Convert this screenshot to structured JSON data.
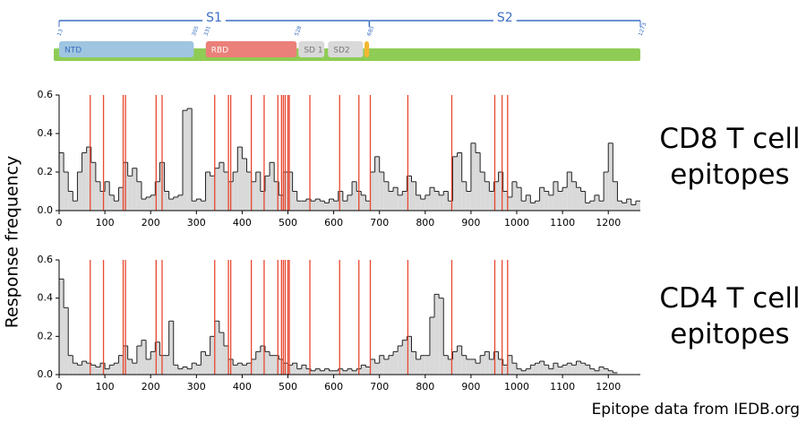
{
  "ylabel": "Response frequency",
  "source": "Epitope data from IEDB.org",
  "domain_map": {
    "regions": [
      {
        "label": "S1",
        "start": 13,
        "end": 685
      },
      {
        "label": "S2",
        "start": 686,
        "end": 1273
      }
    ],
    "domains": [
      {
        "label": "NTD",
        "start": 13,
        "end": 305,
        "color": "#9fc5e0"
      },
      {
        "label": "RBD",
        "start": 331,
        "end": 528,
        "color": "#ea8079"
      },
      {
        "label": "SD 1",
        "start": 532,
        "end": 588,
        "color": "#d9d9d9"
      },
      {
        "label": "SD2",
        "start": 596,
        "end": 672,
        "color": "#d9d9d9"
      },
      {
        "start": 675,
        "end": 685,
        "color": "#f5b731"
      }
    ],
    "boundaries": [
      13,
      305,
      331,
      528,
      685,
      1273
    ],
    "bar_color": "#8fcc55",
    "xlim": [
      13,
      1273
    ]
  },
  "chart_data": [
    {
      "type": "step-area",
      "title": "CD8 T cell epitopes",
      "color": "#d9d9d9",
      "line_color": "#222",
      "marker_color": "#e8472f",
      "xlim": [
        0,
        1270
      ],
      "ylim": [
        0,
        0.6
      ],
      "xticks": [
        0,
        100,
        200,
        300,
        400,
        500,
        600,
        700,
        800,
        900,
        1000,
        1100,
        1200
      ],
      "yticks": [
        {
          "value": 0,
          "label": "0.0"
        },
        0.2,
        0.4,
        0.6
      ],
      "epitope_x": [
        68,
        97,
        140,
        145,
        212,
        225,
        340,
        370,
        375,
        420,
        448,
        478,
        486,
        490,
        494,
        500,
        503,
        548,
        613,
        655,
        680,
        762,
        858,
        952,
        968,
        980
      ],
      "x": [
        0,
        10,
        20,
        30,
        40,
        50,
        60,
        70,
        80,
        90,
        100,
        110,
        120,
        130,
        140,
        150,
        160,
        170,
        180,
        190,
        200,
        210,
        220,
        230,
        240,
        250,
        260,
        270,
        280,
        290,
        300,
        310,
        320,
        330,
        340,
        350,
        360,
        370,
        380,
        390,
        400,
        410,
        420,
        430,
        440,
        450,
        460,
        470,
        480,
        490,
        500,
        510,
        520,
        530,
        540,
        550,
        560,
        570,
        580,
        590,
        600,
        610,
        620,
        630,
        640,
        650,
        660,
        670,
        680,
        690,
        700,
        710,
        720,
        730,
        740,
        750,
        760,
        770,
        780,
        790,
        800,
        810,
        820,
        830,
        840,
        850,
        860,
        870,
        880,
        890,
        900,
        910,
        920,
        930,
        940,
        950,
        960,
        970,
        980,
        990,
        1000,
        1010,
        1020,
        1030,
        1040,
        1050,
        1060,
        1070,
        1080,
        1090,
        1100,
        1110,
        1120,
        1130,
        1140,
        1150,
        1160,
        1170,
        1180,
        1190,
        1200,
        1210,
        1220,
        1230,
        1240,
        1250,
        1260
      ],
      "values": [
        0.3,
        0.2,
        0.1,
        0.05,
        0.2,
        0.3,
        0.33,
        0.25,
        0.15,
        0.1,
        0.15,
        0.08,
        0.05,
        0.12,
        0.25,
        0.18,
        0.22,
        0.15,
        0.06,
        0.07,
        0.08,
        0.15,
        0.25,
        0.1,
        0.06,
        0.07,
        0.08,
        0.52,
        0.53,
        0.05,
        0.06,
        0.05,
        0.2,
        0.18,
        0.22,
        0.25,
        0.2,
        0.15,
        0.2,
        0.33,
        0.27,
        0.2,
        0.15,
        0.2,
        0.1,
        0.18,
        0.25,
        0.15,
        0.08,
        0.2,
        0.2,
        0.1,
        0.05,
        0.05,
        0.06,
        0.05,
        0.06,
        0.05,
        0.04,
        0.06,
        0.05,
        0.1,
        0.05,
        0.08,
        0.15,
        0.1,
        0.08,
        0.05,
        0.2,
        0.28,
        0.2,
        0.15,
        0.1,
        0.12,
        0.08,
        0.1,
        0.18,
        0.15,
        0.08,
        0.06,
        0.08,
        0.12,
        0.1,
        0.08,
        0.1,
        0.05,
        0.28,
        0.3,
        0.15,
        0.1,
        0.35,
        0.3,
        0.2,
        0.15,
        0.1,
        0.15,
        0.2,
        0.1,
        0.07,
        0.15,
        0.12,
        0.05,
        0.08,
        0.04,
        0.05,
        0.12,
        0.1,
        0.08,
        0.15,
        0.1,
        0.12,
        0.2,
        0.15,
        0.12,
        0.1,
        0.04,
        0.05,
        0.08,
        0.05,
        0.2,
        0.35,
        0.15,
        0.05,
        0.04,
        0.06,
        0.03,
        0.05
      ]
    },
    {
      "type": "step-area",
      "title": "CD4 T cell epitopes",
      "color": "#d9d9d9",
      "line_color": "#222",
      "marker_color": "#e8472f",
      "xlim": [
        0,
        1270
      ],
      "ylim": [
        0,
        0.6
      ],
      "xticks": [
        0,
        100,
        200,
        300,
        400,
        500,
        600,
        700,
        800,
        900,
        1000,
        1100,
        1200
      ],
      "yticks": [
        {
          "value": 0,
          "label": "0.0"
        },
        0.2,
        0.4,
        0.6
      ],
      "epitope_x": [
        68,
        97,
        140,
        145,
        212,
        225,
        340,
        370,
        375,
        420,
        448,
        478,
        486,
        490,
        494,
        500,
        503,
        548,
        613,
        655,
        680,
        762,
        858,
        952,
        968,
        980
      ],
      "x": [
        0,
        10,
        20,
        30,
        40,
        50,
        60,
        70,
        80,
        90,
        100,
        110,
        120,
        130,
        140,
        150,
        160,
        170,
        180,
        190,
        200,
        210,
        220,
        230,
        240,
        250,
        260,
        270,
        280,
        290,
        300,
        310,
        320,
        330,
        340,
        350,
        360,
        370,
        380,
        390,
        400,
        410,
        420,
        430,
        440,
        450,
        460,
        470,
        480,
        490,
        500,
        510,
        520,
        530,
        540,
        550,
        560,
        570,
        580,
        590,
        600,
        610,
        620,
        630,
        640,
        650,
        660,
        670,
        680,
        690,
        700,
        710,
        720,
        730,
        740,
        750,
        760,
        770,
        780,
        790,
        800,
        810,
        820,
        830,
        840,
        850,
        860,
        870,
        880,
        890,
        900,
        910,
        920,
        930,
        940,
        950,
        960,
        970,
        980,
        990,
        1000,
        1010,
        1020,
        1030,
        1040,
        1050,
        1060,
        1070,
        1080,
        1090,
        1100,
        1110,
        1120,
        1130,
        1140,
        1150,
        1160,
        1170,
        1180,
        1190,
        1200,
        1210
      ],
      "values": [
        0.5,
        0.35,
        0.1,
        0.06,
        0.05,
        0.07,
        0.06,
        0.05,
        0.04,
        0.06,
        0.03,
        0.05,
        0.06,
        0.1,
        0.15,
        0.08,
        0.06,
        0.15,
        0.18,
        0.08,
        0.12,
        0.17,
        0.1,
        0.1,
        0.28,
        0.05,
        0.03,
        0.04,
        0.03,
        0.06,
        0.05,
        0.12,
        0.1,
        0.2,
        0.28,
        0.22,
        0.15,
        0.08,
        0.05,
        0.06,
        0.05,
        0.06,
        0.08,
        0.12,
        0.15,
        0.12,
        0.1,
        0.1,
        0.08,
        0.06,
        0.05,
        0.06,
        0.03,
        0.05,
        0.03,
        0.02,
        0.03,
        0.02,
        0.03,
        0.02,
        0.02,
        0.03,
        0.02,
        0.03,
        0.02,
        0.03,
        0.05,
        0.04,
        0.08,
        0.06,
        0.1,
        0.08,
        0.1,
        0.12,
        0.15,
        0.18,
        0.2,
        0.12,
        0.08,
        0.1,
        0.1,
        0.3,
        0.42,
        0.4,
        0.1,
        0.08,
        0.12,
        0.15,
        0.1,
        0.08,
        0.08,
        0.06,
        0.1,
        0.12,
        0.08,
        0.12,
        0.08,
        0.05,
        0.1,
        0.06,
        0.03,
        0.02,
        0.03,
        0.05,
        0.06,
        0.07,
        0.05,
        0.03,
        0.06,
        0.04,
        0.05,
        0.06,
        0.05,
        0.07,
        0.06,
        0.05,
        0.03,
        0.02,
        0.04,
        0.03,
        0.02,
        0.01
      ]
    }
  ]
}
